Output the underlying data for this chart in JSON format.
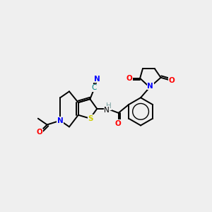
{
  "background_color": "#efefef",
  "atom_colors": {
    "N": "#0000ff",
    "O": "#ff0000",
    "S": "#cccc00",
    "C_cyan": "#008080",
    "H": "#7aa0a0"
  },
  "figsize": [
    3.0,
    3.0
  ],
  "dpi": 100
}
